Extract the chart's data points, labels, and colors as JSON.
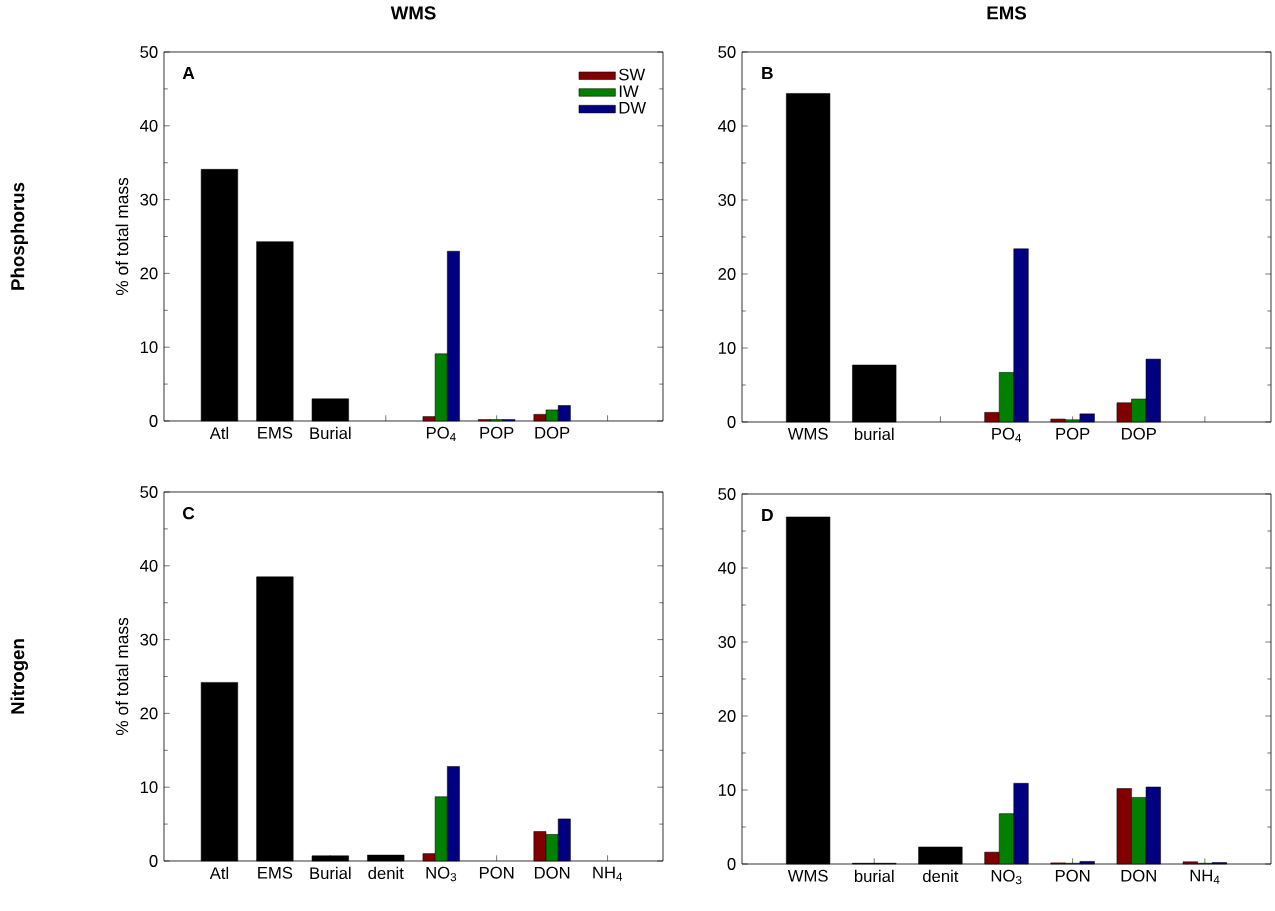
{
  "chart_data": [
    {
      "type": "bar",
      "title": "WMS",
      "ylabel": "% of total mass",
      "annotations": [
        "A",
        "Phosphorus"
      ],
      "categories": [
        "Atl",
        "EMS",
        "Burial",
        null,
        "PO$_{4}$",
        "POP",
        "DOP",
        null
      ],
      "series": [
        {
          "color": "#000000",
          "values": [
            34.1,
            24.3,
            3.0,
            null,
            null,
            null,
            null,
            null
          ]
        },
        {
          "name": "SW",
          "color": "#800000",
          "values": [
            null,
            null,
            null,
            null,
            0.6,
            0.2,
            0.9,
            null
          ]
        },
        {
          "name": "IW",
          "color": "#008000",
          "values": [
            null,
            null,
            null,
            null,
            9.1,
            0.2,
            1.5,
            null
          ]
        },
        {
          "name": "DW",
          "color": "#000080",
          "values": [
            null,
            null,
            null,
            null,
            23.0,
            0.2,
            2.1,
            null
          ]
        }
      ],
      "ylim": [
        0,
        50
      ],
      "yticks": [
        0,
        10,
        20,
        30,
        40,
        50
      ],
      "legend": "top right"
    },
    {
      "type": "bar",
      "title": "EMS",
      "annotations": [
        "B"
      ],
      "categories": [
        "WMS",
        "burial",
        null,
        "PO$_{4}$",
        "POP",
        "DOP",
        null
      ],
      "series": [
        {
          "color": "#000000",
          "values": [
            44.4,
            7.7,
            null,
            null,
            null,
            null,
            null
          ]
        },
        {
          "color": "#800000",
          "values": [
            null,
            null,
            null,
            1.3,
            0.4,
            2.6,
            null
          ]
        },
        {
          "color": "#008000",
          "values": [
            null,
            null,
            null,
            6.7,
            0.3,
            3.1,
            null
          ]
        },
        {
          "color": "#000080",
          "values": [
            null,
            null,
            null,
            23.4,
            1.1,
            8.5,
            null
          ]
        }
      ],
      "ylim": [
        0,
        50
      ],
      "yticks": [
        0,
        10,
        20,
        30,
        40,
        50
      ]
    },
    {
      "type": "bar",
      "ylabel": "% of total mass",
      "annotations": [
        "C",
        "Nitrogen"
      ],
      "categories": [
        "Atl",
        "EMS",
        "Burial",
        "denit",
        "NO$_{3}$",
        "PON",
        "DON",
        "NH$_{4}$"
      ],
      "series": [
        {
          "color": "#000000",
          "values": [
            24.2,
            38.5,
            0.7,
            0.8,
            null,
            null,
            null,
            null
          ]
        },
        {
          "color": "#800000",
          "values": [
            null,
            null,
            null,
            null,
            1.0,
            null,
            4.0,
            null
          ]
        },
        {
          "color": "#008000",
          "values": [
            null,
            null,
            null,
            null,
            8.7,
            null,
            3.6,
            null
          ]
        },
        {
          "color": "#000080",
          "values": [
            null,
            null,
            null,
            null,
            12.8,
            null,
            5.7,
            null
          ]
        }
      ],
      "ylim": [
        0,
        50
      ],
      "yticks": [
        0,
        10,
        20,
        30,
        40,
        50
      ]
    },
    {
      "type": "bar",
      "annotations": [
        "D"
      ],
      "categories": [
        "WMS",
        "burial",
        "denit",
        "NO$_{3}$",
        "PON",
        "DON",
        "NH$_{4}$"
      ],
      "series": [
        {
          "color": "#000000",
          "values": [
            46.9,
            0.1,
            2.3,
            null,
            null,
            null,
            null
          ]
        },
        {
          "color": "#800000",
          "values": [
            null,
            null,
            null,
            1.6,
            0.15,
            10.2,
            0.3
          ]
        },
        {
          "color": "#008000",
          "values": [
            null,
            null,
            null,
            6.8,
            0.1,
            9.0,
            0.1
          ]
        },
        {
          "color": "#000080",
          "values": [
            null,
            null,
            null,
            10.9,
            0.35,
            10.4,
            0.2
          ]
        }
      ],
      "ylim": [
        0,
        50
      ],
      "yticks": [
        0,
        10,
        20,
        30,
        40,
        50
      ]
    }
  ]
}
